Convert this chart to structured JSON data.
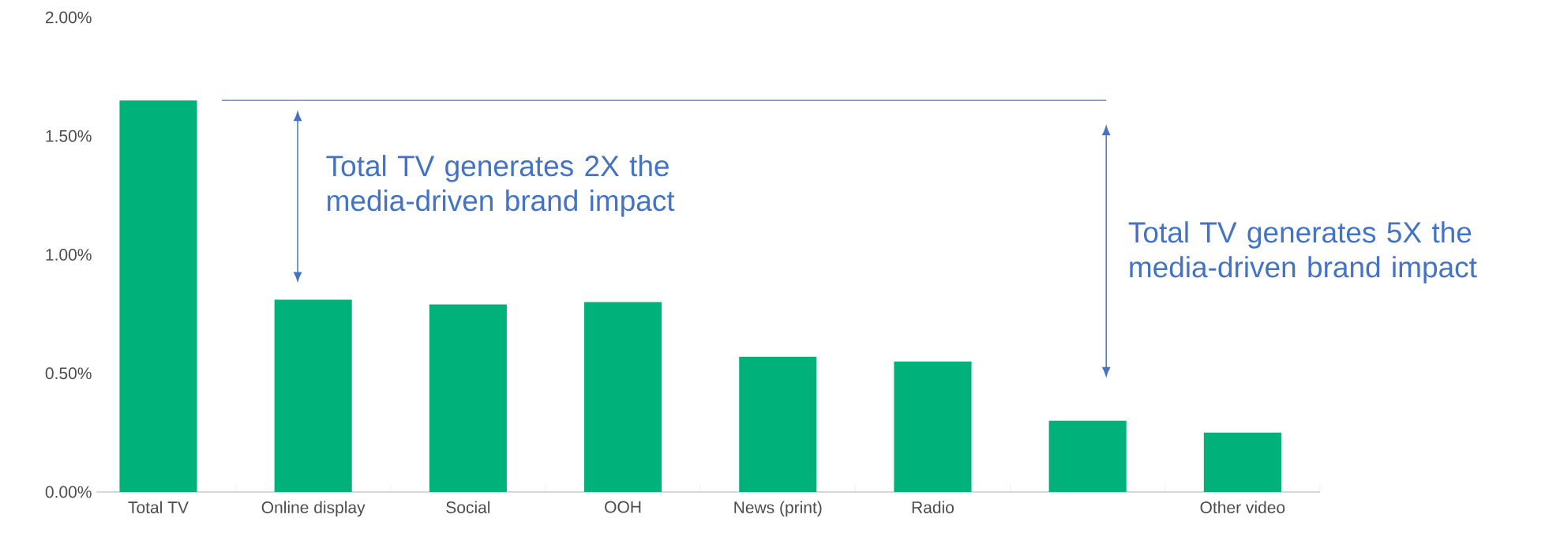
{
  "chart_data": {
    "type": "bar",
    "categories": [
      "Total TV",
      "Online display",
      "Social",
      "OOH",
      "News (print)",
      "Radio",
      null,
      "Other video"
    ],
    "values": [
      1.65,
      0.81,
      0.79,
      0.8,
      0.57,
      0.55,
      0.3,
      0.25
    ],
    "color": "#00b27a",
    "ylim": [
      0,
      2
    ],
    "yticks": [
      {
        "value": 0,
        "label": "0.00%"
      },
      {
        "value": 0.5,
        "label": "0.50%"
      },
      {
        "value": 1,
        "label": "1.00%"
      },
      {
        "value": 1.5,
        "label": "1.50%"
      },
      {
        "value": 2,
        "label": "2.00%"
      }
    ],
    "ref_lines": [
      {
        "axis": "y",
        "value": 1.65,
        "color": "#4472c4"
      }
    ],
    "annotations": [
      "Total TV generates 2X the media-driven brand impact",
      "Total TV generates 5X the media-driven brand impact"
    ]
  }
}
